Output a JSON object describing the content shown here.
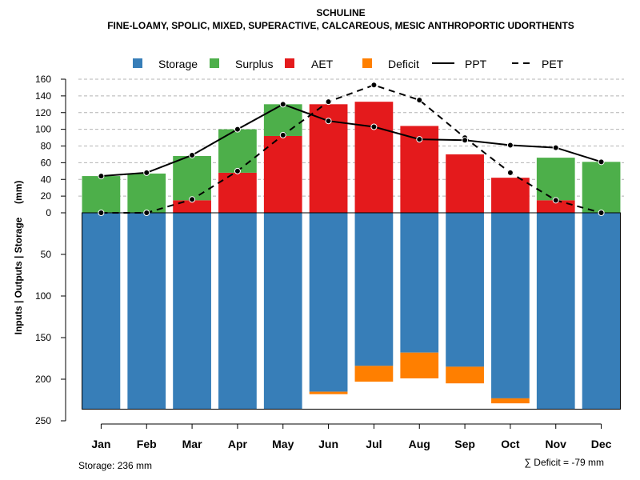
{
  "chart_data": {
    "type": "bar",
    "title": "SCHULINE",
    "subtitle": "FINE-LOAMY, SPOLIC, MIXED, SUPERACTIVE, CALCAREOUS, MESIC ANTHROPORTIC UDORTHENTS",
    "ylabel": "Inputs | Outputs | Storage     (mm)",
    "categories": [
      "Jan",
      "Feb",
      "Mar",
      "Apr",
      "May",
      "Jun",
      "Jul",
      "Aug",
      "Sep",
      "Oct",
      "Nov",
      "Dec"
    ],
    "ylim_upper": [
      0,
      160
    ],
    "ylim_lower": [
      0,
      250
    ],
    "yticks_upper": [
      0,
      20,
      40,
      60,
      80,
      100,
      120,
      140,
      160
    ],
    "yticks_lower": [
      50,
      100,
      150,
      200,
      250
    ],
    "colors": {
      "storage": "#377EB8",
      "surplus": "#4DAF4A",
      "aet": "#E41A1C",
      "deficit": "#FF7F00",
      "grid": "#b4b4b4"
    },
    "legend": {
      "storage": "Storage",
      "surplus": "Surplus",
      "aet": "AET",
      "deficit": "Deficit",
      "ppt": "PPT",
      "pet": "PET"
    },
    "series": [
      {
        "name": "AET",
        "values": [
          0,
          0,
          15,
          48,
          92,
          130,
          133,
          104,
          70,
          42,
          15,
          0
        ]
      },
      {
        "name": "Surplus",
        "values": [
          44,
          47,
          53,
          52,
          38,
          0,
          0,
          0,
          0,
          0,
          51,
          61
        ]
      },
      {
        "name": "Storage",
        "values": [
          236,
          236,
          236,
          236,
          236,
          215,
          184,
          168,
          185,
          223,
          236,
          236
        ]
      },
      {
        "name": "Deficit",
        "values": [
          0,
          0,
          0,
          0,
          0,
          3,
          19,
          31,
          20,
          6,
          0,
          0
        ]
      },
      {
        "name": "PPT",
        "values": [
          44,
          48,
          69,
          100,
          130,
          110,
          103,
          88,
          87,
          81,
          78,
          61
        ]
      },
      {
        "name": "PET",
        "values": [
          0,
          0,
          16,
          50,
          93,
          133,
          153,
          135,
          90,
          48,
          15,
          0
        ]
      }
    ],
    "storage_note": "Storage: 236 mm",
    "deficit_note": "∑ Deficit = -79 mm"
  }
}
